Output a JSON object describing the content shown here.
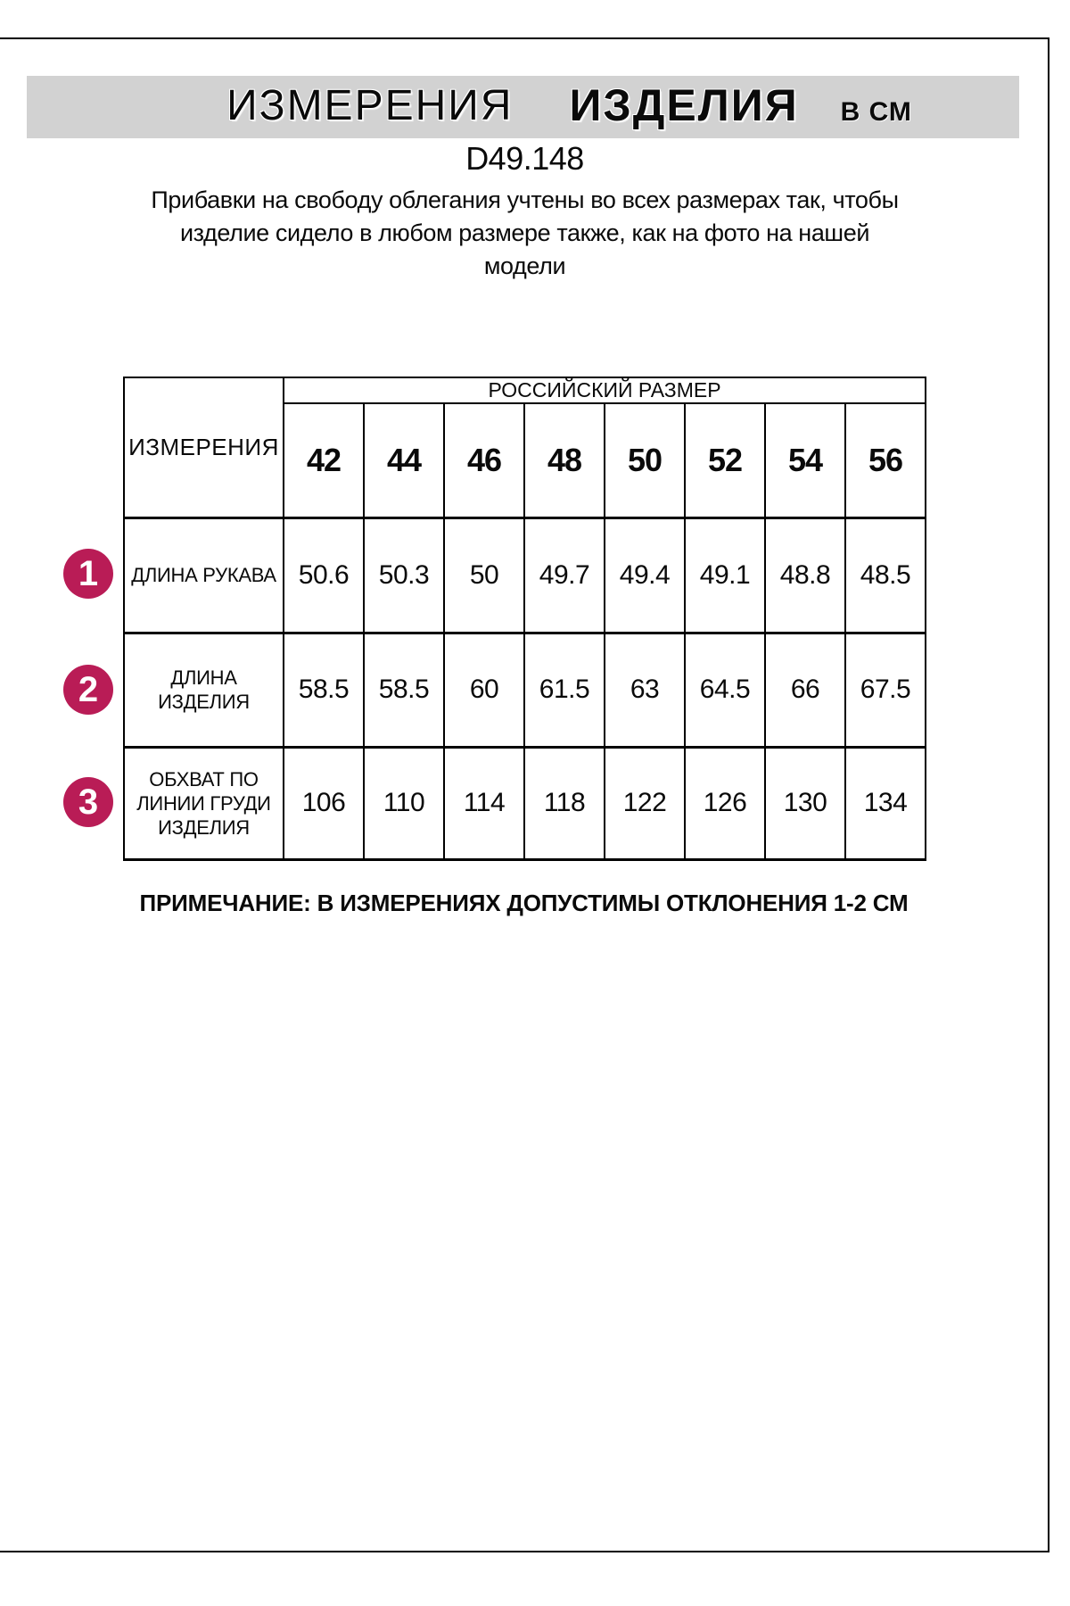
{
  "banner": {
    "word1": "ИЗМЕРЕНИЯ",
    "word2": "ИЗДЕЛИЯ",
    "unit": "В СМ",
    "bg_color": "#d2d2d2"
  },
  "product": {
    "code": "D49.148",
    "description_lines": [
      "Прибавки на свободу облегания учтены во всех размерах так, чтобы",
      "изделие сидело в любом размере также, как на фото на нашей",
      "модели"
    ]
  },
  "note": "ПРИМЕЧАНИЕ: В ИЗМЕРЕНИЯХ ДОПУСТИМЫ ОТКЛОНЕНИЯ 1-2 СМ",
  "colors": {
    "accent_circle": "#b91c56",
    "banner_bg": "#d2d2d2",
    "table_border": "#000000"
  },
  "chart_data": {
    "type": "table",
    "title": "ИЗМЕРЕНИЯ ИЗДЕЛИЯ В СМ",
    "corner_header": "ИЗМЕРЕНИЯ",
    "group_header": "РОССИЙСКИЙ РАЗМЕР",
    "sizes": [
      "42",
      "44",
      "46",
      "48",
      "50",
      "52",
      "54",
      "56"
    ],
    "rows": [
      {
        "num": "1",
        "label": "ДЛИНА РУКАВА",
        "label_lines": [
          "ДЛИНА РУКАВА"
        ],
        "values": [
          "50.6",
          "50.3",
          "50",
          "49.7",
          "49.4",
          "49.1",
          "48.8",
          "48.5"
        ]
      },
      {
        "num": "2",
        "label": "ДЛИНА ИЗДЕЛИЯ",
        "label_lines": [
          "ДЛИНА",
          "ИЗДЕЛИЯ"
        ],
        "values": [
          "58.5",
          "58.5",
          "60",
          "61.5",
          "63",
          "64.5",
          "66",
          "67.5"
        ]
      },
      {
        "num": "3",
        "label": "ОБХВАТ ПО ЛИНИИ ГРУДИ ИЗДЕЛИЯ",
        "label_lines": [
          "ОБХВАТ ПО",
          "ЛИНИИ ГРУДИ",
          "ИЗДЕЛИЯ"
        ],
        "values": [
          "106",
          "110",
          "114",
          "118",
          "122",
          "126",
          "130",
          "134"
        ]
      }
    ]
  }
}
